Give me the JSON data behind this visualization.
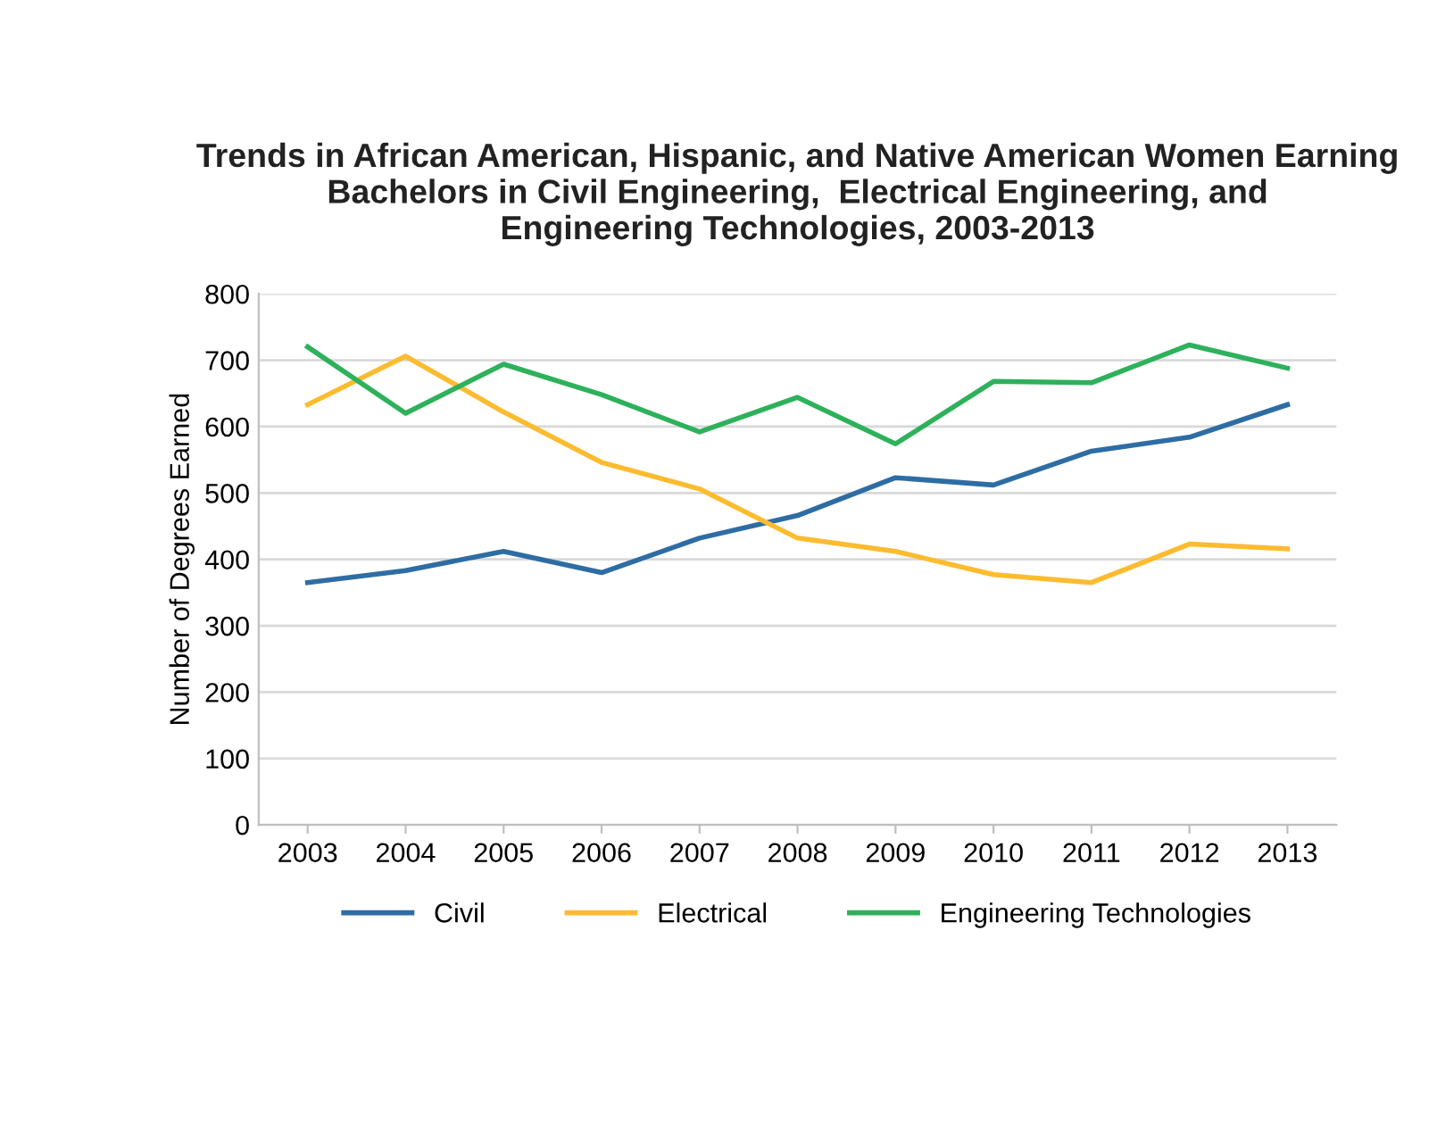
{
  "chart_data": {
    "type": "line",
    "title": "Trends in African American, Hispanic, and Native American Women Earning\nBachelors in Civil Engineering,  Electrical Engineering, and\nEngineering Technologies, 2003-2013",
    "ylabel": "Number of Degrees Earned",
    "categories": [
      "2003",
      "2004",
      "2005",
      "2006",
      "2007",
      "2008",
      "2009",
      "2010",
      "2011",
      "2012",
      "2013"
    ],
    "series": [
      {
        "name": "Civil",
        "color": "#2e6da4",
        "values": [
          365,
          383,
          412,
          380,
          432,
          466,
          523,
          512,
          563,
          584,
          633
        ]
      },
      {
        "name": "Electrical",
        "color": "#fdbb2f",
        "values": [
          633,
          706,
          622,
          546,
          506,
          432,
          412,
          377,
          365,
          423,
          416
        ]
      },
      {
        "name": "Engineering Technologies",
        "color": "#2eb15b",
        "values": [
          720,
          620,
          694,
          648,
          592,
          644,
          574,
          668,
          666,
          723,
          688
        ]
      }
    ],
    "ylim": [
      0,
      800
    ],
    "yticks": [
      0,
      100,
      200,
      300,
      400,
      500,
      600,
      700,
      800
    ],
    "grid": "y",
    "legend": "bottom",
    "marker": "none",
    "line_style": "solid"
  }
}
